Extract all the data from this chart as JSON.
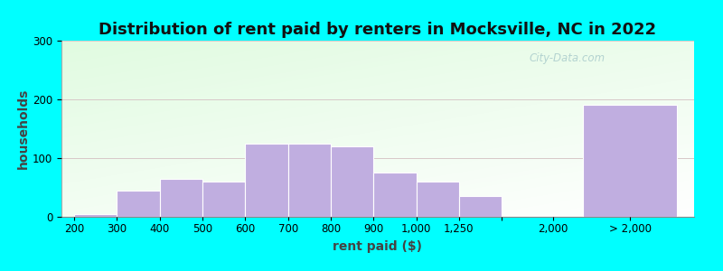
{
  "title": "Distribution of rent paid by renters in Mocksville, NC in 2022",
  "xlabel": "rent paid ($)",
  "ylabel": "households",
  "background_outer": "#00FFFF",
  "bar_color": "#c0aee0",
  "bar_edge_color": "#ffffff",
  "watermark": "City-Data.com",
  "ylim": [
    0,
    300
  ],
  "yticks": [
    0,
    100,
    200,
    300
  ],
  "categories": [
    "200",
    "300",
    "400",
    "500",
    "600",
    "700",
    "800",
    "900",
    "1,000",
    "1,250",
    "2,000",
    "> 2,000"
  ],
  "values": [
    5,
    45,
    65,
    60,
    125,
    125,
    120,
    75,
    60,
    35,
    190
  ],
  "last_bar_value": 190,
  "title_fontsize": 13,
  "axis_label_fontsize": 10,
  "tick_fontsize": 8.5
}
